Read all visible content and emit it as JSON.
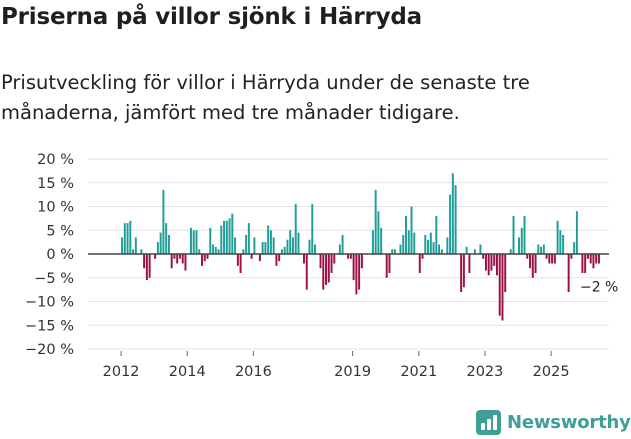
{
  "title": "Priserna på villor sjönk i Härryda",
  "subtitle": "Prisutveckling för villor i Härryda under de senaste tre månaderna, jämfört med tre månader tidigare.",
  "brand": {
    "name": "Newsworthy",
    "icon": "newsworthy-bar-chart-icon"
  },
  "colors": {
    "positive": "#1e9e96",
    "negative": "#9c0f45",
    "grid": "#e3e3e3",
    "zero": "#444444",
    "text": "#333333"
  },
  "chart_data": {
    "type": "bar",
    "title": "Priserna på villor sjönk i Härryda",
    "xlabel": "",
    "ylabel": "",
    "ylim": [
      -20,
      20
    ],
    "yticks": [
      20,
      15,
      10,
      5,
      0,
      -5,
      -10,
      -15,
      -20
    ],
    "ytick_labels": [
      "20 %",
      "15 %",
      "10 %",
      "5 %",
      "0 %",
      "−5 %",
      "−10 %",
      "−15 %",
      "−20 %"
    ],
    "xlim": [
      2011.0,
      2026.75
    ],
    "xticks": [
      2012,
      2014,
      2016,
      2019,
      2021,
      2023,
      2025
    ],
    "xtick_labels": [
      "2012",
      "2014",
      "2016",
      "2019",
      "2021",
      "2023",
      "2025"
    ],
    "start": 2012.0,
    "step_years": 0.0833333,
    "last_label": "−2 %",
    "values": [
      3.5,
      6.5,
      6.5,
      7,
      1,
      3.5,
      0,
      1,
      -3,
      -5.5,
      -5,
      0,
      -1,
      2.5,
      4.5,
      13.5,
      6.5,
      4,
      -3,
      -1,
      -2,
      -1,
      -2,
      -3.5,
      0,
      5.5,
      5,
      5,
      1,
      -2.5,
      -1.5,
      -1,
      5.5,
      2,
      1.5,
      1,
      6,
      7,
      7,
      7.5,
      8.5,
      3.5,
      -2.5,
      -4,
      1,
      4,
      6.5,
      -1,
      3.5,
      0,
      -1.5,
      2.5,
      2.5,
      6,
      5,
      3.5,
      -2.5,
      -1.5,
      1,
      1.5,
      3,
      5,
      3.5,
      10.5,
      4.5,
      0,
      -2,
      -7.5,
      3,
      10.5,
      2,
      0,
      -3,
      -7.5,
      -6.5,
      -6,
      -4,
      -2,
      0,
      2,
      4,
      0,
      -1,
      -1,
      -5.5,
      -8.5,
      -7.5,
      -3,
      0,
      0,
      0,
      5,
      13.5,
      9,
      5.5,
      0,
      -5,
      -4,
      1,
      1,
      0,
      2,
      4,
      8,
      5,
      10,
      4.5,
      0,
      -4,
      -1,
      4,
      3,
      4.5,
      2.5,
      8,
      2,
      1,
      0,
      3.5,
      12.5,
      17,
      14.5,
      0,
      -8,
      -7,
      1.5,
      -4,
      0,
      1,
      0,
      2,
      -1,
      -3.5,
      -4.5,
      -3.5,
      -2.5,
      -4.5,
      -13,
      -14,
      -8,
      0,
      1,
      8,
      0,
      3.5,
      5.5,
      8,
      -1,
      -3,
      -5,
      -4,
      2,
      1.5,
      2,
      -1,
      -2,
      -2,
      -2,
      7,
      5,
      4,
      0,
      -8,
      -1,
      2.5,
      9,
      0,
      -4,
      -4,
      -1,
      -2,
      -3,
      -2,
      -2
    ]
  }
}
